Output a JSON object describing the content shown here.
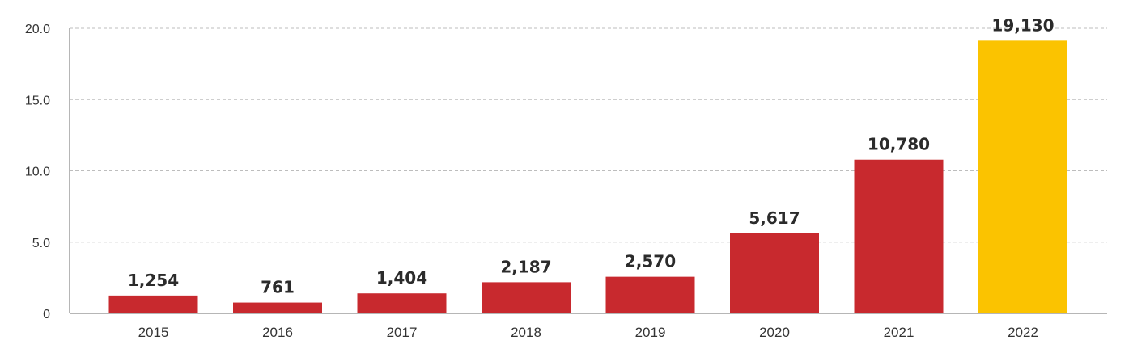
{
  "chart_data": {
    "type": "bar",
    "categories": [
      "2015",
      "2016",
      "2017",
      "2018",
      "2019",
      "2020",
      "2021",
      "2022"
    ],
    "values": [
      1.254,
      0.761,
      1.404,
      2.187,
      2.57,
      5.617,
      10.78,
      19.13
    ],
    "data_labels": [
      "1,254",
      "761",
      "1,404",
      "2,187",
      "2,570",
      "5,617",
      "10,780",
      "19,130"
    ],
    "y_ticks": [
      0,
      5,
      10,
      15,
      20
    ],
    "y_tick_labels": [
      "0",
      "5.0",
      "10.0",
      "15.0",
      "20.0"
    ],
    "ylim": [
      0,
      20
    ],
    "grid": true,
    "colors": {
      "bar": "#c8292e",
      "highlight": "#fbc300",
      "highlight_category": "2022"
    }
  }
}
